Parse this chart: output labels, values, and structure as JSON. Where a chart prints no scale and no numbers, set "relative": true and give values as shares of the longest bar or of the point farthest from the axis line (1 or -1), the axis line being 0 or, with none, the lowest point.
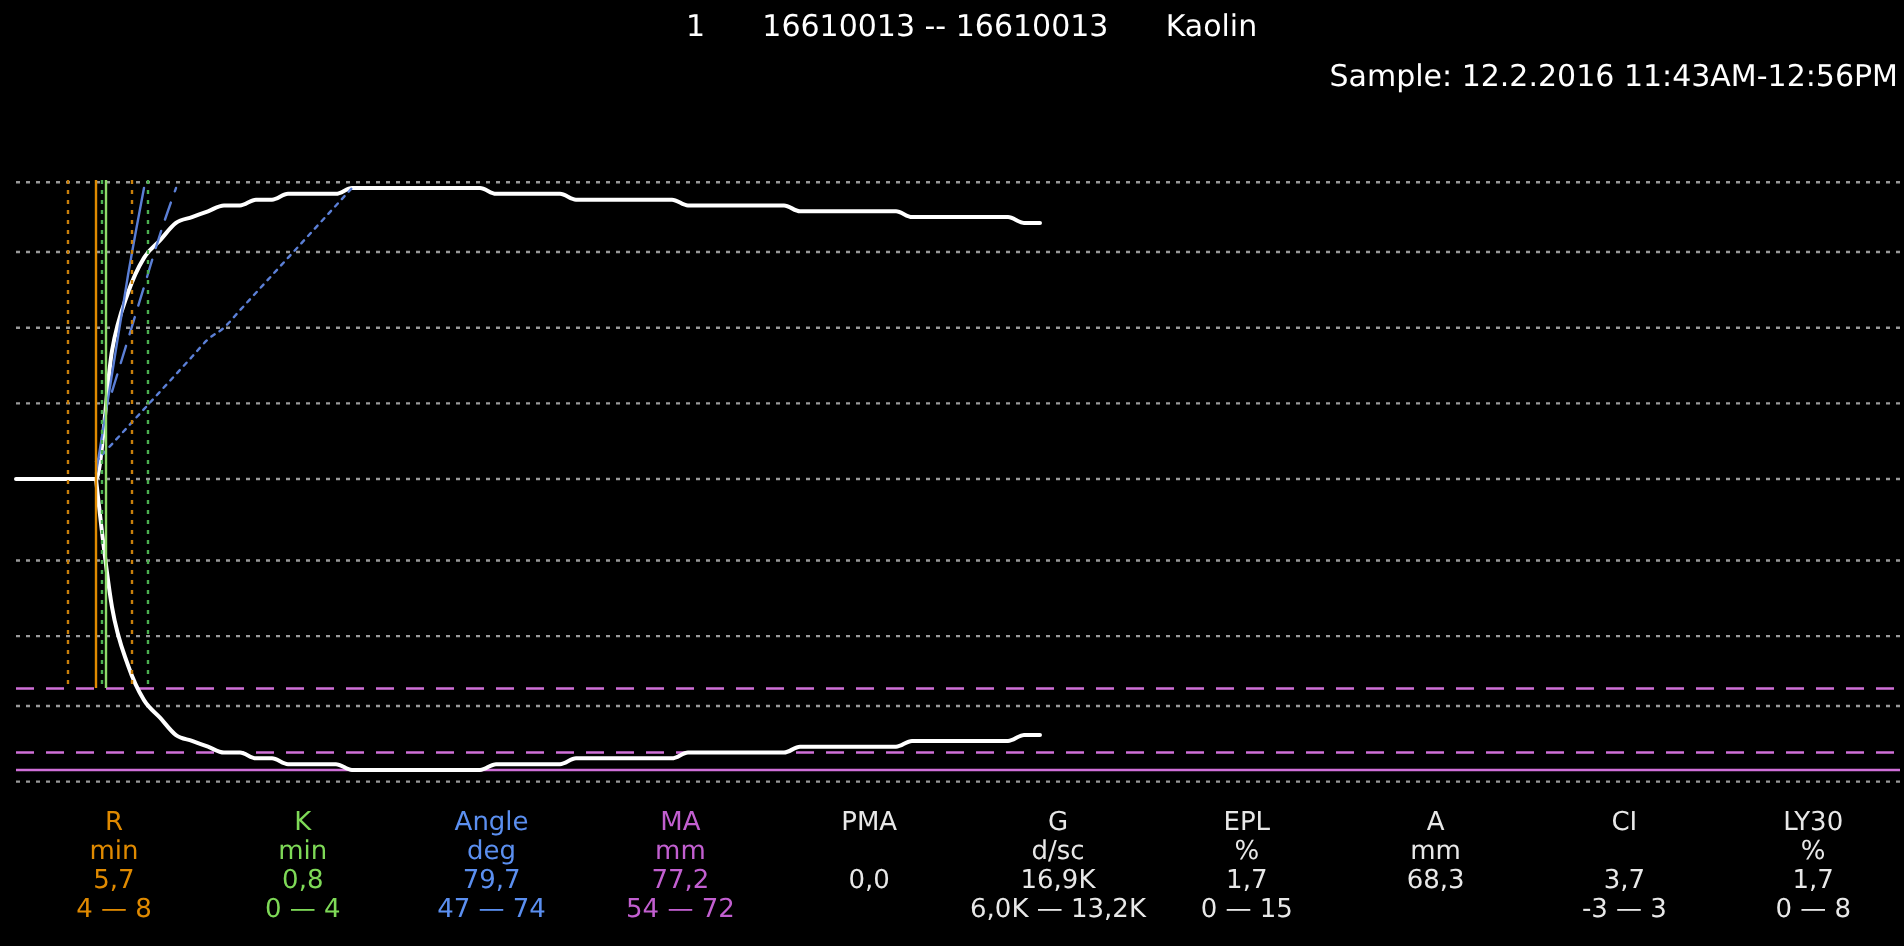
{
  "chart_data": {
    "type": "line",
    "relative": true,
    "title": "1      16610013 -- 16610013      Kaolin",
    "subtitle": "Sample: 12.2.2016 11:43AM-12:56PM",
    "categories": [
      null,
      null,
      null,
      null,
      null,
      null,
      null,
      null,
      null,
      null,
      null,
      null,
      null,
      null,
      null,
      null,
      null,
      null,
      null,
      null,
      null,
      null,
      null,
      null,
      null,
      null,
      null,
      null,
      null,
      null,
      null,
      null,
      null,
      null,
      null,
      null,
      null,
      null,
      null,
      null,
      null,
      null,
      null,
      null,
      null,
      null,
      null,
      null,
      null,
      null,
      null,
      null,
      null,
      null,
      null,
      null,
      null,
      null,
      null,
      null,
      null,
      null,
      null,
      null,
      null,
      null,
      null,
      null,
      null,
      null,
      null,
      null,
      null,
      null,
      null,
      null,
      null,
      null,
      null,
      null,
      null,
      null,
      null,
      null,
      null,
      null,
      null,
      null,
      null,
      null,
      null,
      null,
      null,
      null,
      null,
      null,
      null,
      null,
      null,
      null,
      null,
      null,
      null,
      null,
      null,
      null,
      null,
      null,
      null,
      null,
      null,
      null,
      null,
      null,
      null,
      null,
      null,
      null
    ],
    "series": [
      {
        "color": "#ffffff",
        "line_style": "solid",
        "values": [
          0.5,
          0.5,
          0.5,
          0.5,
          0.5,
          0.5,
          0.72,
          0.82,
          0.88,
          0.91,
          0.94,
          0.95,
          0.96,
          0.97,
          0.97,
          0.98,
          0.98,
          0.99,
          0.99,
          0.99,
          0.99,
          1,
          1,
          1,
          1,
          1,
          1,
          1,
          1,
          1,
          0.99,
          0.99,
          0.99,
          0.99,
          0.99,
          0.98,
          0.98,
          0.98,
          0.98,
          0.98,
          0.98,
          0.98,
          0.97,
          0.97,
          0.97,
          0.97,
          0.97,
          0.97,
          0.97,
          0.96,
          0.96,
          0.96,
          0.96,
          0.96,
          0.96,
          0.96,
          0.95,
          0.95,
          0.95,
          0.95,
          0.95,
          0.95,
          0.95,
          0.94,
          0.94,
          null,
          null,
          null,
          null,
          null,
          null,
          null,
          null,
          null,
          null,
          null,
          null,
          null,
          null,
          null,
          null,
          null,
          null,
          null,
          null,
          null,
          null,
          null,
          null,
          null,
          null,
          null,
          null,
          null,
          null,
          null,
          null,
          null,
          null,
          null,
          null,
          null,
          null,
          null,
          null,
          null,
          null,
          null,
          null,
          null,
          null,
          null,
          null,
          null,
          null,
          null,
          null,
          null
        ]
      },
      {
        "color": "#ffffff",
        "line_style": "solid",
        "values": [
          null,
          null,
          null,
          null,
          null,
          0.5,
          0.28,
          0.18,
          0.12,
          0.09,
          0.06,
          0.05,
          0.04,
          0.03,
          0.03,
          0.02,
          0.02,
          0.01,
          0.01,
          0.01,
          0.01,
          0,
          0,
          0,
          0,
          0,
          0,
          0,
          0,
          0,
          0.01,
          0.01,
          0.01,
          0.01,
          0.01,
          0.02,
          0.02,
          0.02,
          0.02,
          0.02,
          0.02,
          0.02,
          0.03,
          0.03,
          0.03,
          0.03,
          0.03,
          0.03,
          0.03,
          0.04,
          0.04,
          0.04,
          0.04,
          0.04,
          0.04,
          0.04,
          0.05,
          0.05,
          0.05,
          0.05,
          0.05,
          0.05,
          0.05,
          0.06,
          0.06,
          null,
          null,
          null,
          null,
          null,
          null,
          null,
          null,
          null,
          null,
          null,
          null,
          null,
          null,
          null,
          null,
          null,
          null,
          null,
          null,
          null,
          null,
          null,
          null,
          null,
          null,
          null,
          null,
          null,
          null,
          null,
          null,
          null,
          null,
          null,
          null,
          null,
          null,
          null,
          null,
          null,
          null,
          null,
          null,
          null,
          null,
          null,
          null,
          null,
          null,
          null,
          null,
          null
        ]
      },
      {
        "color": "#5b7fd6",
        "line_style": "dotted",
        "values": [
          null,
          null,
          null,
          null,
          null,
          0.53,
          0.56,
          0.59,
          0.62,
          0.65,
          0.68,
          0.71,
          0.74,
          0.76,
          0.79,
          0.82,
          0.85,
          0.88,
          0.91,
          0.94,
          0.97,
          1,
          null,
          null,
          null,
          null,
          null,
          null,
          null,
          null,
          null,
          null,
          null,
          null,
          null,
          null,
          null,
          null,
          null,
          null,
          null,
          null,
          null,
          null,
          null,
          null,
          null,
          null,
          null,
          null,
          null,
          null,
          null,
          null,
          null,
          null,
          null,
          null,
          null,
          null,
          null,
          null,
          null,
          null,
          null,
          null,
          null,
          null,
          null,
          null,
          null,
          null,
          null,
          null,
          null,
          null,
          null,
          null,
          null,
          null,
          null,
          null,
          null,
          null,
          null,
          null,
          null,
          null,
          null,
          null,
          null,
          null,
          null,
          null,
          null,
          null,
          null,
          null,
          null,
          null,
          null,
          null,
          null,
          null,
          null,
          null,
          null,
          null,
          null,
          null,
          null,
          null,
          null,
          null,
          null,
          null,
          null,
          null
        ]
      },
      {
        "color": "#5b7fd6",
        "line_style": "dashed",
        "values": [
          null,
          null,
          null,
          null,
          null,
          null,
          0.65,
          0.74,
          0.83,
          0.92,
          1,
          null,
          null,
          null,
          null,
          null,
          null,
          null,
          null,
          null,
          null,
          null,
          null,
          null,
          null,
          null,
          null,
          null,
          null,
          null,
          null,
          null,
          null,
          null,
          null,
          null,
          null,
          null,
          null,
          null,
          null,
          null,
          null,
          null,
          null,
          null,
          null,
          null,
          null,
          null,
          null,
          null,
          null,
          null,
          null,
          null,
          null,
          null,
          null,
          null,
          null,
          null,
          null,
          null,
          null,
          null,
          null,
          null,
          null,
          null,
          null,
          null,
          null,
          null,
          null,
          null,
          null,
          null,
          null,
          null,
          null,
          null,
          null,
          null,
          null,
          null,
          null,
          null,
          null,
          null,
          null,
          null,
          null,
          null,
          null,
          null,
          null,
          null,
          null,
          null,
          null,
          null,
          null,
          null,
          null,
          null,
          null,
          null,
          null,
          null,
          null,
          null,
          null,
          null,
          null,
          null,
          null,
          null
        ]
      },
      {
        "color": "#5b7fd6",
        "line_style": "solid",
        "values": [
          null,
          null,
          null,
          null,
          null,
          0.51,
          0.68,
          0.85,
          1,
          null,
          null,
          null,
          null,
          null,
          null,
          null,
          null,
          null,
          null,
          null,
          null,
          null,
          null,
          null,
          null,
          null,
          null,
          null,
          null,
          null,
          null,
          null,
          null,
          null,
          null,
          null,
          null,
          null,
          null,
          null,
          null,
          null,
          null,
          null,
          null,
          null,
          null,
          null,
          null,
          null,
          null,
          null,
          null,
          null,
          null,
          null,
          null,
          null,
          null,
          null,
          null,
          null,
          null,
          null,
          null,
          null,
          null,
          null,
          null,
          null,
          null,
          null,
          null,
          null,
          null,
          null,
          null,
          null,
          null,
          null,
          null,
          null,
          null,
          null,
          null,
          null,
          null,
          null,
          null,
          null,
          null,
          null,
          null,
          null,
          null,
          null,
          null,
          null,
          null,
          null,
          null,
          null,
          null,
          null,
          null,
          null,
          null,
          null,
          null,
          null,
          null,
          null,
          null,
          null,
          null,
          null,
          null,
          null
        ]
      }
    ],
    "ref_lines": [
      {
        "axis": "y",
        "value": 1.01,
        "color": "#9a9a9a",
        "line_style": "dotted"
      },
      {
        "axis": "y",
        "value": 0.89,
        "color": "#9a9a9a",
        "line_style": "dotted"
      },
      {
        "axis": "y",
        "value": 0.76,
        "color": "#9a9a9a",
        "line_style": "dotted"
      },
      {
        "axis": "y",
        "value": 0.63,
        "color": "#9a9a9a",
        "line_style": "dotted"
      },
      {
        "axis": "y",
        "value": 0.5,
        "color": "#9a9a9a",
        "line_style": "dotted"
      },
      {
        "axis": "y",
        "value": 0.36,
        "color": "#9a9a9a",
        "line_style": "dotted"
      },
      {
        "axis": "y",
        "value": 0.23,
        "color": "#9a9a9a",
        "line_style": "dotted"
      },
      {
        "axis": "y",
        "value": 0.11,
        "color": "#9a9a9a",
        "line_style": "dotted"
      },
      {
        "axis": "y",
        "value": -0.02,
        "color": "#9a9a9a",
        "line_style": "dotted"
      },
      {
        "axis": "y",
        "value": 0.14,
        "color": "#d070d8",
        "line_style": "dashed"
      },
      {
        "axis": "y",
        "value": 0.03,
        "color": "#d070d8",
        "line_style": "dashed"
      },
      {
        "axis": "y",
        "value": 0,
        "color": "#d070d8",
        "line_style": "solid"
      }
    ],
    "annotations": [
      "R\nmin\n5,7\n4 — 8",
      "K\nmin\n0,8\n0 — 4",
      "Angle\ndeg\n79,7\n47 — 74",
      "MA\nmm\n77,2\n54 — 72",
      "PMA\n\n0,0",
      "G\nd/sc\n16,9K\n6,0K — 13,2K",
      "EPL\n%\n1,7\n0 — 15",
      "A\nmm\n68,3",
      "CI\n\n3,7\n-3 — 3",
      "LY30\n%\n1,7\n0 — 8"
    ]
  }
}
